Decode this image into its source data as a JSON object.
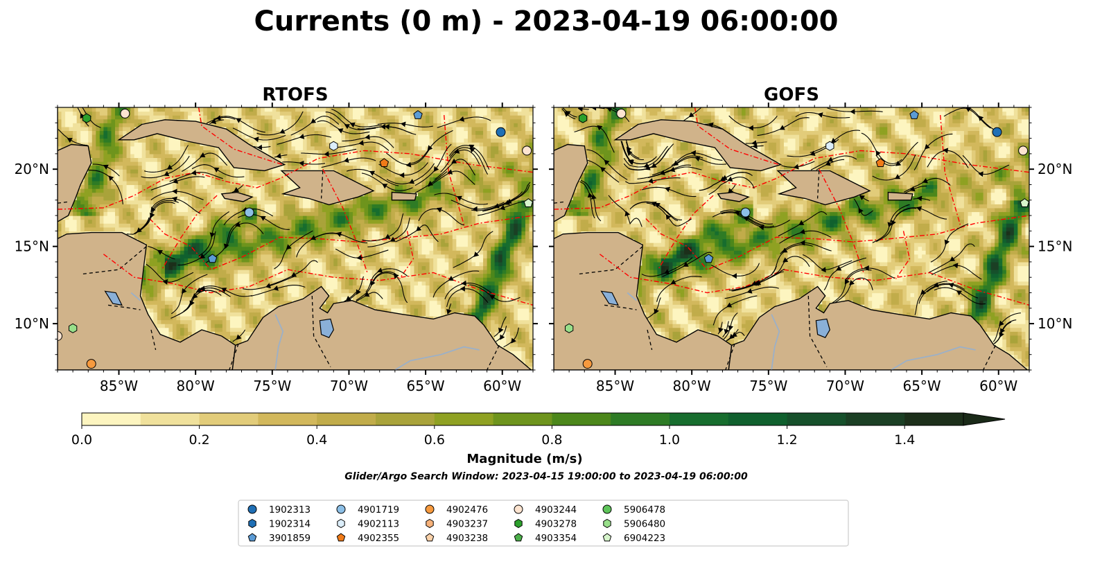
{
  "title": "Currents (0 m) - 2023-04-19 06:00:00",
  "colors": {
    "land": "#d0b38a",
    "lake": "#8ab0d8",
    "river": "#9bb0c8",
    "streamline": "#000000",
    "eez_boundary": "#ff0000",
    "contour": "#444444"
  },
  "chart_data": [
    {
      "type": "heatmap",
      "subtype": "map-streamlines",
      "title": "RTOFS",
      "lon_range": [
        -89,
        -58
      ],
      "lat_range": [
        7,
        24
      ],
      "xticks": [
        -85,
        -80,
        -75,
        -70,
        -65,
        -60
      ],
      "xticklabels": [
        "85°W",
        "80°W",
        "75°W",
        "70°W",
        "65°W",
        "60°W"
      ],
      "yticks": [
        10,
        15,
        20
      ],
      "yticklabels": [
        "10°N",
        "15°N",
        "20°N"
      ],
      "ytick_side": "left",
      "floats": [
        {
          "id": "1902313",
          "lon": -60.1,
          "lat": 22.4
        },
        {
          "id": "4903278",
          "lon": -87.1,
          "lat": 23.3
        },
        {
          "id": "4903244",
          "lon": -84.6,
          "lat": 23.6
        },
        {
          "id": "3901859",
          "lon": -65.5,
          "lat": 23.5
        },
        {
          "id": "4902113",
          "lon": -71.0,
          "lat": 21.5
        },
        {
          "id": "4902355",
          "lon": -67.7,
          "lat": 20.4
        },
        {
          "id": "4903244",
          "lon": -58.4,
          "lat": 21.2
        },
        {
          "id": "6904223",
          "lon": -58.3,
          "lat": 17.8
        },
        {
          "id": "4901719",
          "lon": -76.5,
          "lat": 17.2
        },
        {
          "id": "3901859",
          "lon": -78.9,
          "lat": 14.2
        },
        {
          "id": "5906480",
          "lon": -88.0,
          "lat": 9.7
        },
        {
          "id": "4903244",
          "lon": -89.0,
          "lat": 9.2
        },
        {
          "id": "4902476",
          "lon": -86.8,
          "lat": 7.4
        }
      ]
    },
    {
      "type": "heatmap",
      "subtype": "map-streamlines",
      "title": "GOFS",
      "lon_range": [
        -89,
        -58
      ],
      "lat_range": [
        7,
        24
      ],
      "xticks": [
        -85,
        -80,
        -75,
        -70,
        -65,
        -60
      ],
      "xticklabels": [
        "85°W",
        "80°W",
        "75°W",
        "70°W",
        "65°W",
        "60°W"
      ],
      "yticks": [
        10,
        15,
        20
      ],
      "yticklabels": [
        "10°N",
        "15°N",
        "20°N"
      ],
      "ytick_side": "right",
      "floats": [
        {
          "id": "1902313",
          "lon": -60.1,
          "lat": 22.4
        },
        {
          "id": "4903278",
          "lon": -87.1,
          "lat": 23.3
        },
        {
          "id": "4903244",
          "lon": -84.6,
          "lat": 23.6
        },
        {
          "id": "3901859",
          "lon": -65.5,
          "lat": 23.5
        },
        {
          "id": "4902113",
          "lon": -71.0,
          "lat": 21.5
        },
        {
          "id": "4902355",
          "lon": -67.7,
          "lat": 20.4
        },
        {
          "id": "4903244",
          "lon": -58.4,
          "lat": 21.2
        },
        {
          "id": "6904223",
          "lon": -58.3,
          "lat": 17.8
        },
        {
          "id": "4901719",
          "lon": -76.5,
          "lat": 17.2
        },
        {
          "id": "3901859",
          "lon": -78.9,
          "lat": 14.2
        },
        {
          "id": "5906480",
          "lon": -88.0,
          "lat": 9.7
        },
        {
          "id": "4902476",
          "lon": -86.8,
          "lat": 7.4
        }
      ]
    }
  ],
  "colorbar": {
    "label": "Magnitude (m/s)",
    "range": [
      0.0,
      1.5
    ],
    "extend": "max",
    "ticks": [
      0.0,
      0.2,
      0.4,
      0.6,
      0.8,
      1.0,
      1.2,
      1.4
    ],
    "ticklabels": [
      "0.0",
      "0.2",
      "0.4",
      "0.6",
      "0.8",
      "1.0",
      "1.2",
      "1.4"
    ],
    "bins": [
      "#fdf5c0",
      "#f0e19c",
      "#e2cc7a",
      "#d2b85c",
      "#c1ac4a",
      "#a9a33a",
      "#8fa122",
      "#6e941d",
      "#4c871b",
      "#2e7b25",
      "#176d2e",
      "#10602e",
      "#16502b",
      "#1b3f24",
      "#1c2f1a"
    ],
    "extend_color": "#1a2a18"
  },
  "search_window": "Glider/Argo Search Window: 2023-04-15 19:00:00 to 2023-04-19 06:00:00",
  "legend": {
    "entries": [
      {
        "id": "1902313",
        "marker": "circle",
        "color": "#1f6fb5"
      },
      {
        "id": "1902314",
        "marker": "hexagon",
        "color": "#1f6fb5"
      },
      {
        "id": "3901859",
        "marker": "pentagon",
        "color": "#5b9bd5"
      },
      {
        "id": "4901719",
        "marker": "circle",
        "color": "#8cbfe6"
      },
      {
        "id": "4902113",
        "marker": "hexagon",
        "color": "#dceefa"
      },
      {
        "id": "4902355",
        "marker": "pentagon",
        "color": "#f07b18"
      },
      {
        "id": "4902476",
        "marker": "circle",
        "color": "#f79a3e"
      },
      {
        "id": "4903237",
        "marker": "hexagon",
        "color": "#f7b27a"
      },
      {
        "id": "4903238",
        "marker": "pentagon",
        "color": "#fbd2aa"
      },
      {
        "id": "4903244",
        "marker": "circle",
        "color": "#fde4d0"
      },
      {
        "id": "4903278",
        "marker": "hexagon",
        "color": "#2ca02c"
      },
      {
        "id": "4903354",
        "marker": "pentagon",
        "color": "#4caf4a"
      },
      {
        "id": "5906478",
        "marker": "circle",
        "color": "#5ec45a"
      },
      {
        "id": "5906480",
        "marker": "hexagon",
        "color": "#98df8a"
      },
      {
        "id": "6904223",
        "marker": "pentagon",
        "color": "#d7f5cc"
      }
    ]
  }
}
